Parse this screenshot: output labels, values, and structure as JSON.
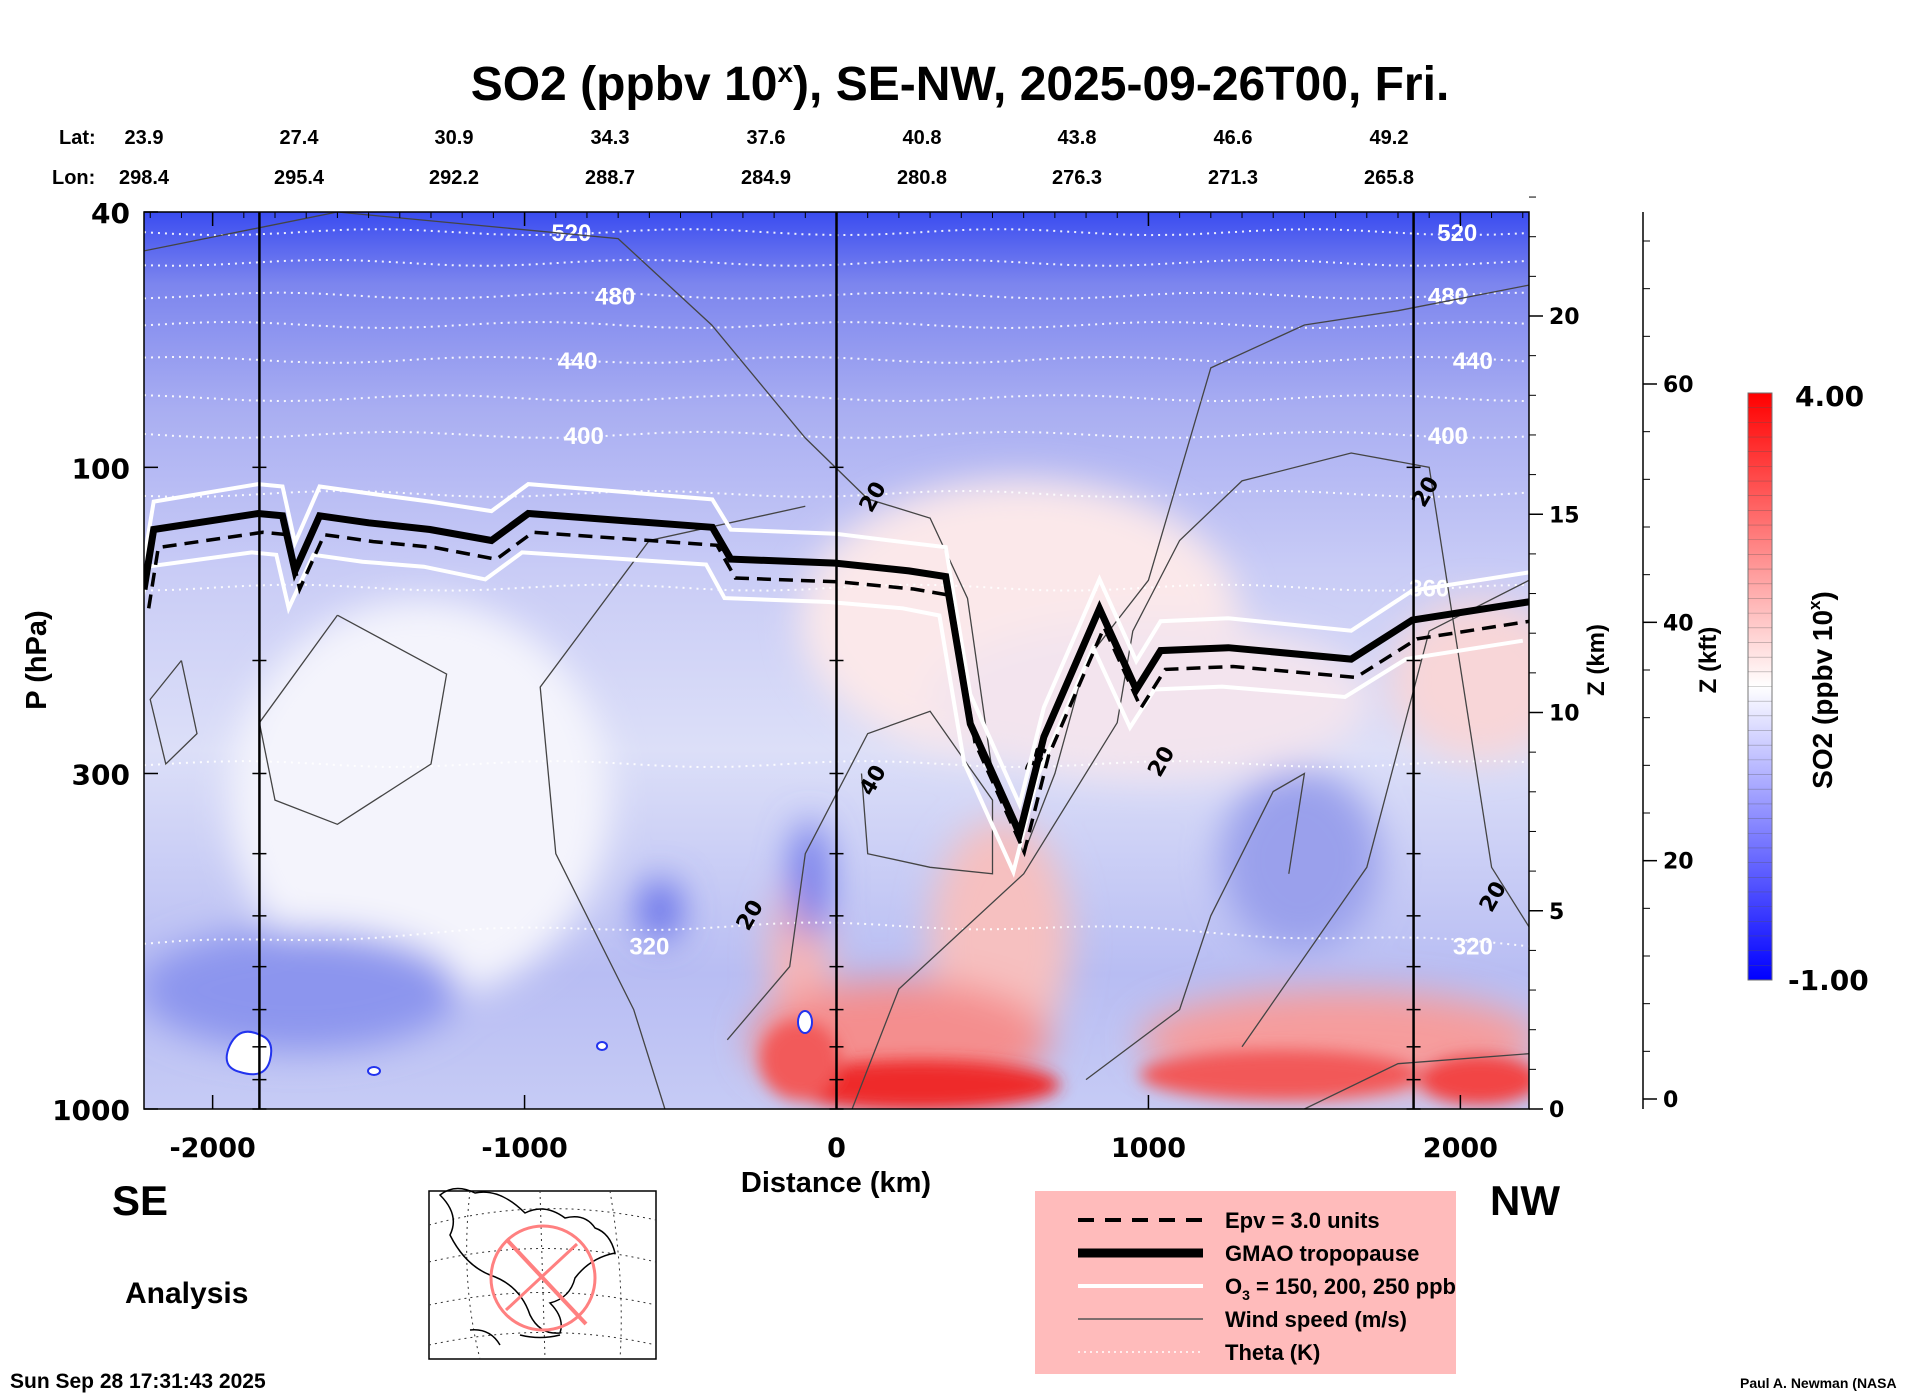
{
  "chart_data": {
    "type": "heatmap",
    "title_parts": [
      "SO2 (ppbv 10",
      "x",
      "), SE-NW, 2025-09-26T00, Fri."
    ],
    "xlabel": "Distance (km)",
    "ylabel": "P (hPa)",
    "y2label": "Z (km)",
    "y3label": "Z (kft)",
    "xlim": [
      -2220,
      2220
    ],
    "ylim": [
      1000,
      40
    ],
    "y_scale": "log",
    "x_ticks": [
      -2000,
      -1000,
      0,
      1000,
      2000
    ],
    "x_tick_labels": [
      "-2000",
      "-1000",
      "0",
      "1000",
      "2000"
    ],
    "y_ticks": [
      40,
      100,
      300,
      1000
    ],
    "y_tick_labels": [
      "40",
      "100",
      "300",
      "1000"
    ],
    "z_km_ticks": [
      0,
      5,
      10,
      15,
      20
    ],
    "z_km_tick_labels": [
      "0",
      "5",
      "10",
      "15",
      "20"
    ],
    "z_kft_ticks": [
      0,
      20,
      40,
      60
    ],
    "z_kft_tick_labels": [
      "0",
      "20",
      "40",
      "60"
    ],
    "vertical_markers_km": [
      -1850,
      0,
      1850
    ],
    "lat_label": "Lat:",
    "lon_label": "Lon:",
    "lat": [
      "23.9",
      "27.4",
      "30.9",
      "34.3",
      "37.6",
      "40.8",
      "43.8",
      "46.6",
      "49.2"
    ],
    "lon": [
      "298.4",
      "295.4",
      "292.2",
      "288.7",
      "284.9",
      "280.8",
      "276.3",
      "271.3",
      "265.8"
    ],
    "colorbar": {
      "title_parts": [
        "SO2 (ppbv 10",
        "x",
        ")"
      ],
      "min": -1.0,
      "max": 4.0,
      "min_label": "-1.00",
      "max_label": "4.00",
      "low_color": "#0000ff",
      "mid_color": "#ffffff",
      "high_color": "#ff0000"
    },
    "tropopause": {
      "x": [
        -2220,
        -2189,
        -1854,
        -1776,
        -1736,
        -1657,
        -1500,
        -1303,
        -1106,
        -988,
        -398,
        -339,
        -4,
        232,
        350,
        429,
        587,
        665,
        843,
        961,
        1039,
        1256,
        1650,
        1846,
        2220
      ],
      "p": [
        155,
        119,
        118,
        119,
        139,
        119,
        122,
        119,
        130,
        118,
        118,
        139,
        141,
        139,
        148,
        251,
        366,
        263,
        166,
        216,
        193,
        191,
        193,
        173,
        162
      ]
    },
    "theta_lines": [
      {
        "value": 520,
        "label": "520",
        "p": 43,
        "label_x": [
          -850,
          1990
        ]
      },
      {
        "value": 500,
        "label": "",
        "p": 48,
        "label_x": []
      },
      {
        "value": 480,
        "label": "480",
        "p": 54,
        "label_x": [
          -710,
          1960
        ]
      },
      {
        "value": 460,
        "label": "",
        "p": 60,
        "label_x": []
      },
      {
        "value": 440,
        "label": "440",
        "p": 68,
        "label_x": [
          -830,
          2040
        ]
      },
      {
        "value": 420,
        "label": "",
        "p": 78,
        "label_x": []
      },
      {
        "value": 400,
        "label": "400",
        "p": 89,
        "label_x": [
          -810,
          1960
        ]
      },
      {
        "value": 380,
        "label": "",
        "p": 110,
        "label_x": []
      },
      {
        "value": 360,
        "label": "360",
        "p": 154,
        "label_x": [
          1900
        ]
      },
      {
        "value": 340,
        "label": "",
        "p": 290,
        "label_x": []
      },
      {
        "value": 320,
        "label": "320",
        "p": 556,
        "label_x": [
          -600,
          2040
        ]
      }
    ],
    "wind_labels": [
      {
        "text": "20",
        "x": 114,
        "p": 111
      },
      {
        "text": "20",
        "x": -280,
        "p": 498
      },
      {
        "text": "40",
        "x": 114,
        "p": 307
      },
      {
        "text": "20",
        "x": 646,
        "p": 287
      },
      {
        "text": "20",
        "x": 1039,
        "p": 287
      },
      {
        "text": "20",
        "x": 1886,
        "p": 109
      },
      {
        "text": "20",
        "x": 2102,
        "p": 466
      }
    ]
  },
  "labels": {
    "xlabel": "Distance (km)",
    "se": "SE",
    "nw": "NW",
    "analysis": "Analysis",
    "timestamp": "Sun Sep 28 17:31:43 2025",
    "credit": "Paul A. Newman (NASA"
  },
  "legend": {
    "background": "#ffbbbb",
    "items": [
      {
        "style": "dashed",
        "label": "Epv = 3.0 units"
      },
      {
        "style": "thick",
        "label": "GMAO tropopause"
      },
      {
        "style": "white",
        "label_parts": [
          "O",
          "3",
          " = 150, 200, 250 ppb"
        ]
      },
      {
        "style": "thin",
        "label": "Wind speed (m/s)"
      },
      {
        "style": "dotted",
        "label": "Theta (K)"
      }
    ]
  }
}
